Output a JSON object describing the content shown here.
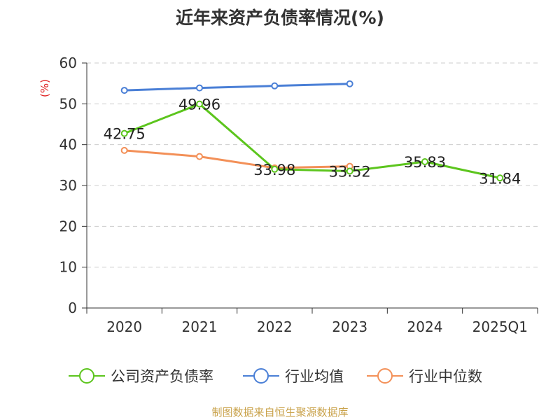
{
  "title": "近年来资产负债率情况(%)",
  "source": "制图数据来自恒生聚源数据库",
  "colors": {
    "company": "#5cc51d",
    "industry_avg": "#4a7fd6",
    "industry_median": "#f39058",
    "axis": "#333333",
    "grid": "#cccccc",
    "source": "#c9a24a",
    "unit": "#e02020"
  },
  "chart_data": {
    "type": "line",
    "title": "近年来资产负债率情况(%)",
    "ylabel": "(%)",
    "xlabel": "",
    "categories": [
      "2020",
      "2021",
      "2022",
      "2023",
      "2024",
      "2025Q1"
    ],
    "ylim": [
      0,
      60
    ],
    "yticks": [
      0,
      10,
      20,
      30,
      40,
      50,
      60
    ],
    "grid": true,
    "legend_position": "bottom",
    "series": [
      {
        "name": "公司资产负债率",
        "values": [
          42.75,
          49.96,
          33.98,
          33.52,
          35.83,
          31.84
        ],
        "labels": [
          "42.75",
          "49.96",
          "33.98",
          "33.52",
          "35.83",
          "31.84"
        ],
        "color": "#5cc51d"
      },
      {
        "name": "行业均值",
        "values": [
          53.3,
          53.9,
          54.4,
          54.9,
          null,
          null
        ],
        "color": "#4a7fd6"
      },
      {
        "name": "行业中位数",
        "values": [
          38.6,
          37.1,
          34.3,
          34.7,
          null,
          null
        ],
        "color": "#f39058"
      }
    ]
  }
}
